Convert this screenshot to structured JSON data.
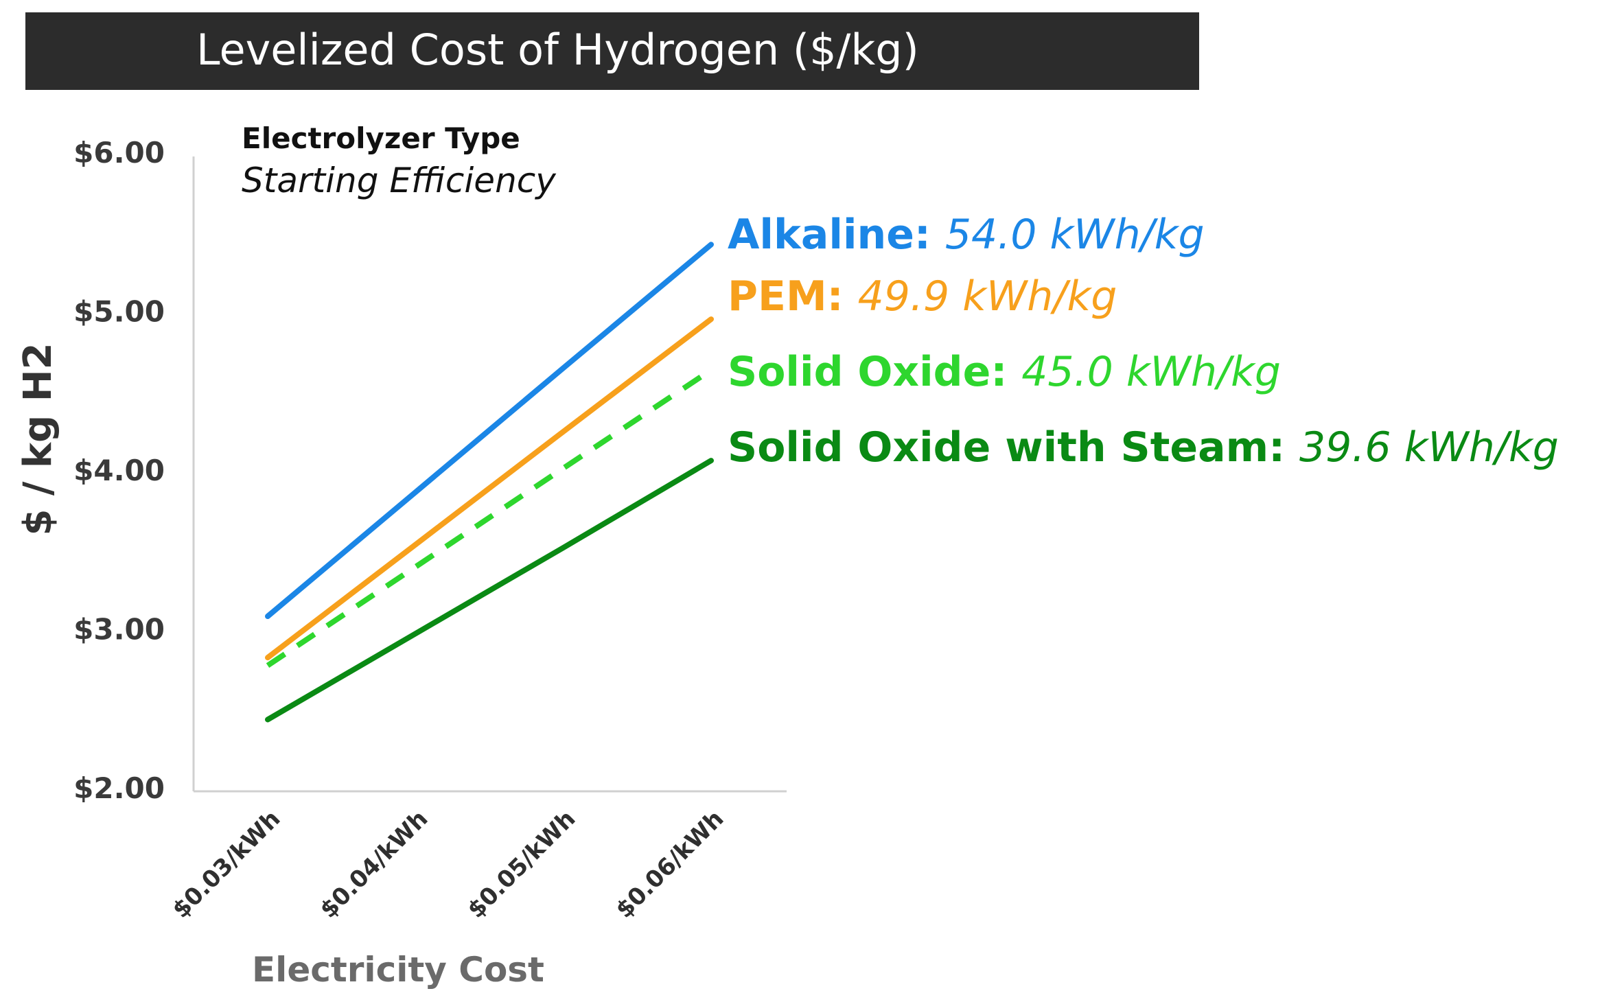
{
  "chart_data": {
    "type": "line",
    "title": "Levelized Cost of Hydrogen ($/kg)",
    "xlabel": "Electricity Cost",
    "ylabel": "$ / kg H2",
    "categories": [
      "$0.03/kWh",
      "$0.04/kWh",
      "$0.05/kWh",
      "$0.06/kWh"
    ],
    "ylim": [
      2.0,
      6.0
    ],
    "yticks": [
      {
        "value": 2.0,
        "label": "$2.00"
      },
      {
        "value": 3.0,
        "label": "$3.00"
      },
      {
        "value": 4.0,
        "label": "$4.00"
      },
      {
        "value": 5.0,
        "label": "$5.00"
      },
      {
        "value": 6.0,
        "label": "$6.00"
      }
    ],
    "grid": false,
    "legend": {
      "placement": "top-left",
      "header": "Electrolyzer Type",
      "subheader": "Starting Efficiency"
    },
    "series": [
      {
        "name": "Alkaline",
        "efficiency": "54.0 kWh/kg",
        "color": "#1b86e6",
        "dashed": false,
        "values": [
          3.08,
          3.86,
          4.64,
          5.42
        ]
      },
      {
        "name": "PEM",
        "efficiency": "49.9 kWh/kg",
        "color": "#f7a01c",
        "dashed": false,
        "values": [
          2.82,
          3.53,
          4.24,
          4.95
        ]
      },
      {
        "name": "Solid Oxide",
        "efficiency": "45.0 kWh/kg",
        "color": "#2ed62e",
        "dashed": true,
        "values": [
          2.77,
          3.39,
          4.01,
          4.63
        ]
      },
      {
        "name": "Solid Oxide with Steam",
        "efficiency": "39.6 kWh/kg",
        "color": "#0a8a14",
        "dashed": false,
        "values": [
          2.43,
          2.97,
          3.51,
          4.06
        ]
      }
    ]
  }
}
